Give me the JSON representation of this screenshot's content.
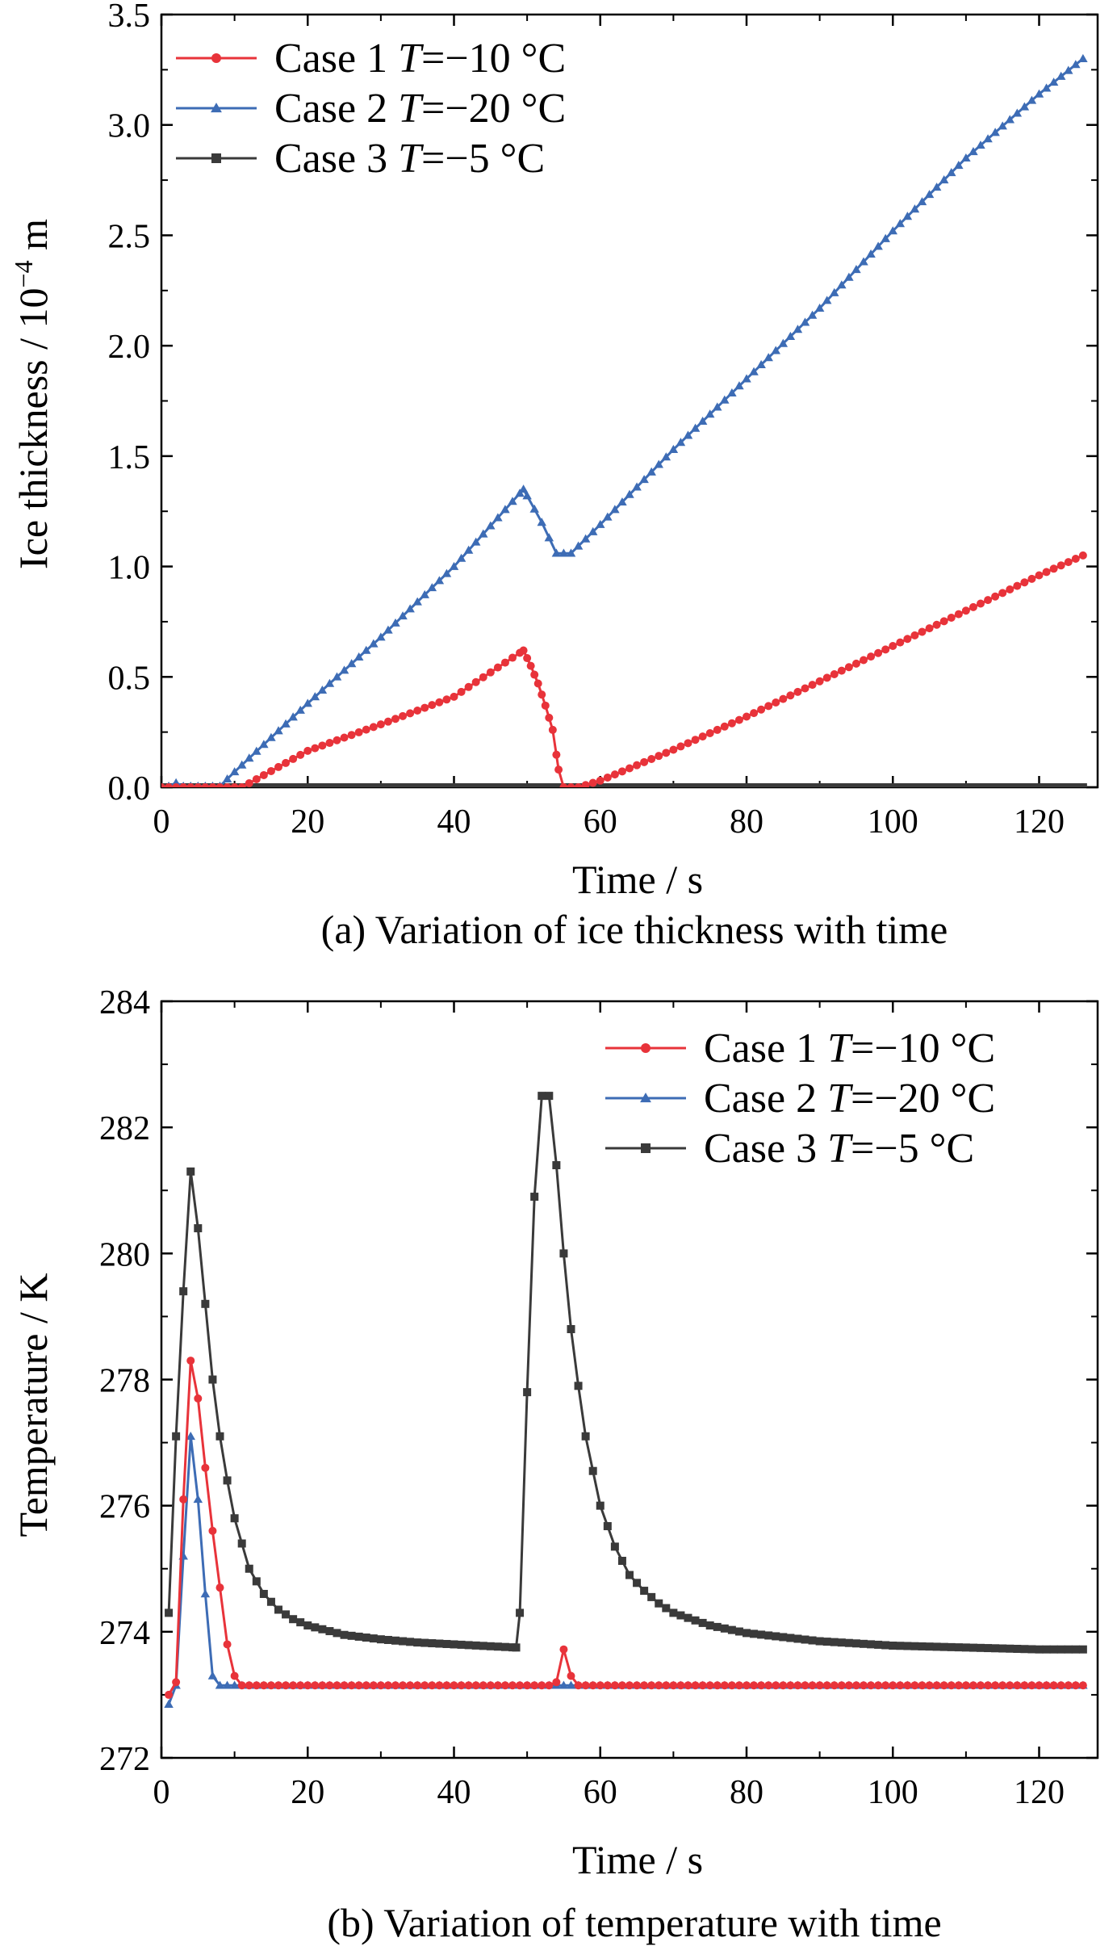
{
  "chart_data": [
    {
      "type": "line",
      "caption": "(a) Variation of ice thickness with time",
      "xlabel": "Time / s",
      "ylabel_main": "Ice thickness / 10",
      "ylabel_exp": "−4",
      "ylabel_unit": " m",
      "xlim": [
        0,
        128
      ],
      "ylim": [
        0,
        3.5
      ],
      "xticks": [
        0,
        20,
        40,
        60,
        80,
        100,
        120
      ],
      "yticks": [
        0.0,
        0.5,
        1.0,
        1.5,
        2.0,
        2.5,
        3.0,
        3.5
      ],
      "ytick_labels": [
        "0.0",
        "0.5",
        "1.0",
        "1.5",
        "2.0",
        "2.5",
        "3.0",
        "3.5"
      ],
      "legend_position": "top-left",
      "series": [
        {
          "name": "Case 1 T=−10 °C",
          "label_prefix": "Case 1 ",
          "label_var": "T",
          "label_suffix": "=−10 °C",
          "color": "#e8333a",
          "marker": "circle",
          "x": [
            0,
            11,
            20,
            30,
            40,
            49.5,
            50.5,
            51.5,
            52.5,
            53.5,
            54.3,
            55,
            57,
            60,
            70,
            80,
            90,
            100,
            110,
            120,
            126
          ],
          "y": [
            0,
            0,
            0.165,
            0.285,
            0.41,
            0.62,
            0.55,
            0.47,
            0.37,
            0.26,
            0.08,
            0,
            0,
            0.03,
            0.17,
            0.32,
            0.48,
            0.64,
            0.8,
            0.96,
            1.05
          ]
        },
        {
          "name": "Case 2 T=−20 °C",
          "label_prefix": "Case 2 ",
          "label_var": "T",
          "label_suffix": "=−20 °C",
          "color": "#3d6cb5",
          "marker": "triangle",
          "x": [
            0,
            1,
            2,
            3,
            8,
            10,
            20,
            30,
            40,
            49.5,
            52,
            54,
            56,
            60,
            70,
            80,
            90,
            100,
            110,
            120,
            126
          ],
          "y": [
            0,
            0.005,
            0.02,
            0.005,
            0.005,
            0.07,
            0.38,
            0.68,
            1.0,
            1.35,
            1.2,
            1.06,
            1.06,
            1.19,
            1.53,
            1.85,
            2.17,
            2.52,
            2.85,
            3.14,
            3.3
          ]
        },
        {
          "name": "Case 3 T=−5 °C",
          "label_prefix": "Case 3 ",
          "label_var": "T",
          "label_suffix": "=−5 °C",
          "color": "#3a3a3a",
          "marker": "square",
          "x": [
            0,
            126
          ],
          "y": [
            0,
            0
          ]
        }
      ]
    },
    {
      "type": "line",
      "caption": "(b) Variation of temperature with time",
      "xlabel": "Time / s",
      "ylabel": "Temperature / K",
      "xlim": [
        0,
        128
      ],
      "ylim": [
        272,
        284
      ],
      "xticks": [
        0,
        20,
        40,
        60,
        80,
        100,
        120
      ],
      "yticks": [
        272,
        274,
        276,
        278,
        280,
        282,
        284
      ],
      "legend_position": "top-right",
      "series": [
        {
          "name": "Case 1 T=−10 °C",
          "label_prefix": "Case 1 ",
          "label_var": "T",
          "label_suffix": "=−10 °C",
          "color": "#e8333a",
          "marker": "circle",
          "x": [
            1,
            2,
            3,
            4,
            5,
            6,
            7,
            8,
            9,
            10,
            11,
            15,
            20,
            30,
            40,
            50,
            53,
            54,
            55,
            56,
            57,
            60,
            70,
            80,
            90,
            100,
            110,
            120,
            126
          ],
          "y": [
            273.0,
            273.2,
            276.1,
            278.3,
            277.7,
            276.6,
            275.6,
            274.7,
            273.8,
            273.3,
            273.15,
            273.15,
            273.15,
            273.15,
            273.15,
            273.15,
            273.15,
            273.2,
            273.72,
            273.3,
            273.15,
            273.15,
            273.15,
            273.15,
            273.15,
            273.15,
            273.15,
            273.15,
            273.15
          ]
        },
        {
          "name": "Case 2 T=−20 °C",
          "label_prefix": "Case 2 ",
          "label_var": "T",
          "label_suffix": "=−20 °C",
          "color": "#3d6cb5",
          "marker": "triangle",
          "x": [
            1,
            2,
            3,
            4,
            5,
            6,
            7,
            8,
            10,
            20,
            30,
            40,
            50,
            60,
            70,
            80,
            90,
            100,
            110,
            120,
            126
          ],
          "y": [
            272.85,
            273.15,
            275.2,
            277.1,
            276.1,
            274.6,
            273.3,
            273.15,
            273.15,
            273.15,
            273.15,
            273.15,
            273.15,
            273.15,
            273.15,
            273.15,
            273.15,
            273.15,
            273.15,
            273.15,
            273.15
          ]
        },
        {
          "name": "Case 3 T=−5 °C",
          "label_prefix": "Case 3 ",
          "label_var": "T",
          "label_suffix": "=−5 °C",
          "color": "#3a3a3a",
          "marker": "square",
          "x": [
            1,
            2,
            3,
            4,
            5,
            6,
            7,
            8,
            9,
            10,
            12,
            14,
            16,
            18,
            20,
            25,
            30,
            35,
            40,
            45,
            48.5,
            49,
            50,
            51,
            52,
            53,
            54,
            55,
            56,
            57,
            58,
            60,
            62,
            64,
            66,
            68,
            70,
            75,
            80,
            90,
            100,
            110,
            120,
            126
          ],
          "y": [
            274.3,
            277.1,
            279.4,
            281.3,
            280.4,
            279.2,
            278.0,
            277.1,
            276.4,
            275.8,
            275.0,
            274.6,
            274.35,
            274.2,
            274.1,
            273.95,
            273.88,
            273.83,
            273.8,
            273.77,
            273.75,
            274.3,
            277.8,
            280.9,
            282.5,
            282.5,
            281.4,
            280.0,
            278.8,
            277.9,
            277.1,
            276.0,
            275.35,
            274.9,
            274.65,
            274.45,
            274.3,
            274.1,
            273.98,
            273.85,
            273.78,
            273.75,
            273.72,
            273.72
          ]
        }
      ]
    }
  ]
}
